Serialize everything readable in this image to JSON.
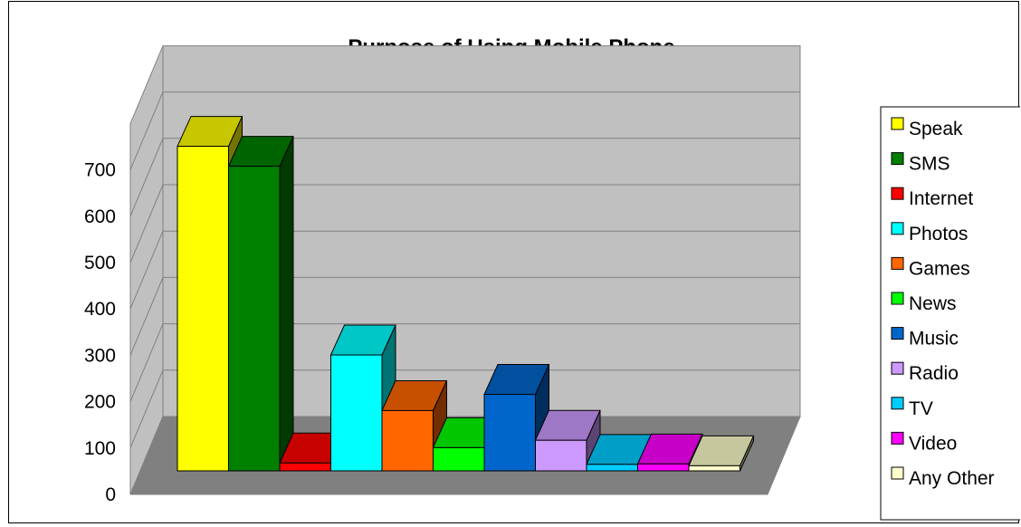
{
  "chart_data": {
    "type": "bar",
    "title": "Purpose of Using Mobile Phone",
    "xlabel": "",
    "ylabel": "",
    "ylim": [
      0,
      700
    ],
    "yticks": [
      0,
      100,
      200,
      300,
      400,
      500,
      600,
      700
    ],
    "grid": true,
    "three_d": true,
    "legend_position": "right",
    "series": [
      {
        "name": "Speak",
        "value": 700,
        "color": "#ffff00"
      },
      {
        "name": "SMS",
        "value": 657,
        "color": "#008000"
      },
      {
        "name": "Internet",
        "value": 17,
        "color": "#ff0000"
      },
      {
        "name": "Photos",
        "value": 250,
        "color": "#00ffff"
      },
      {
        "name": "Games",
        "value": 130,
        "color": "#ff6600"
      },
      {
        "name": "News",
        "value": 50,
        "color": "#00ff00"
      },
      {
        "name": "Music",
        "value": 165,
        "color": "#0066cc"
      },
      {
        "name": "Radio",
        "value": 66,
        "color": "#cc99ff"
      },
      {
        "name": "TV",
        "value": 14,
        "color": "#00ccff"
      },
      {
        "name": "Video",
        "value": 15,
        "color": "#ff00ff"
      },
      {
        "name": "Any Other",
        "value": 11,
        "color": "#ffffcc"
      }
    ]
  }
}
